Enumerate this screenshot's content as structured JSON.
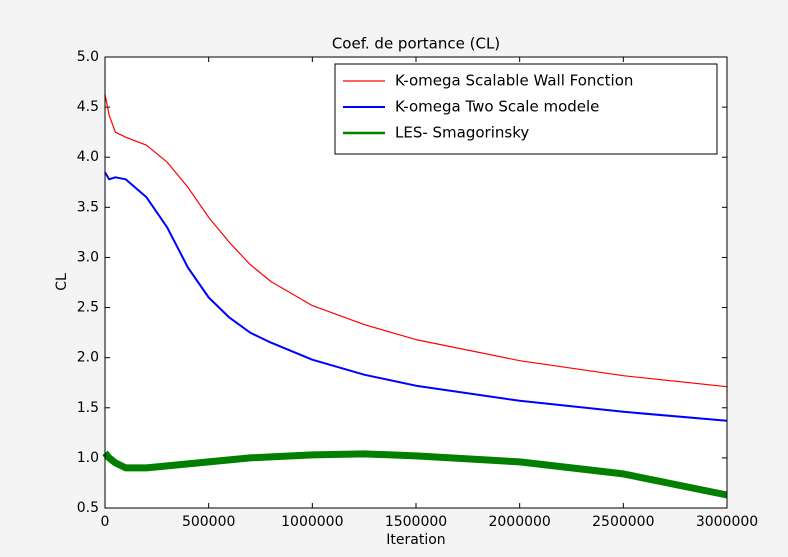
{
  "chart_data": {
    "type": "line",
    "title": "Coef. de portance (CL)",
    "x_label": "Iteration",
    "y_label": "CL",
    "x": [
      0,
      20000,
      50000,
      100000,
      200000,
      300000,
      400000,
      500000,
      600000,
      700000,
      800000,
      1000000,
      1250000,
      1500000,
      2000000,
      2500000,
      3000000
    ],
    "series": [
      {
        "name": "K-omega Scalable Wall Fonction",
        "color": "#ff0000",
        "width": 1.2,
        "values": [
          4.63,
          4.42,
          4.25,
          4.2,
          4.12,
          3.95,
          3.7,
          3.4,
          3.15,
          2.93,
          2.76,
          2.52,
          2.33,
          2.18,
          1.97,
          1.82,
          1.71
        ]
      },
      {
        "name": "K-omega Two Scale modele",
        "color": "#0000ff",
        "width": 2,
        "values": [
          3.85,
          3.78,
          3.8,
          3.78,
          3.6,
          3.3,
          2.9,
          2.6,
          2.4,
          2.25,
          2.15,
          1.98,
          1.83,
          1.72,
          1.57,
          1.46,
          1.37
        ]
      },
      {
        "name": "LES- Smagorinsky",
        "color": "#007f00",
        "width": 7,
        "values": [
          1.05,
          1.0,
          0.95,
          0.9,
          0.9,
          0.92,
          0.94,
          0.96,
          0.98,
          1.0,
          1.01,
          1.03,
          1.04,
          1.02,
          0.96,
          0.84,
          0.63
        ]
      }
    ],
    "xlim": [
      0,
      3000000
    ],
    "ylim": [
      0.5,
      5.0
    ],
    "xticks": [
      0,
      500000,
      1000000,
      1500000,
      2000000,
      2500000,
      3000000
    ],
    "yticks": [
      0.5,
      {
        "value": 1,
        "label": "1.0"
      },
      1.5,
      {
        "value": 2,
        "label": "2.0"
      },
      2.5,
      {
        "value": 3,
        "label": "3.0"
      },
      3.5,
      {
        "value": 4,
        "label": "4.0"
      },
      4.5,
      {
        "value": 5,
        "label": "5.0"
      }
    ],
    "legend": "upper right",
    "grid": false
  }
}
